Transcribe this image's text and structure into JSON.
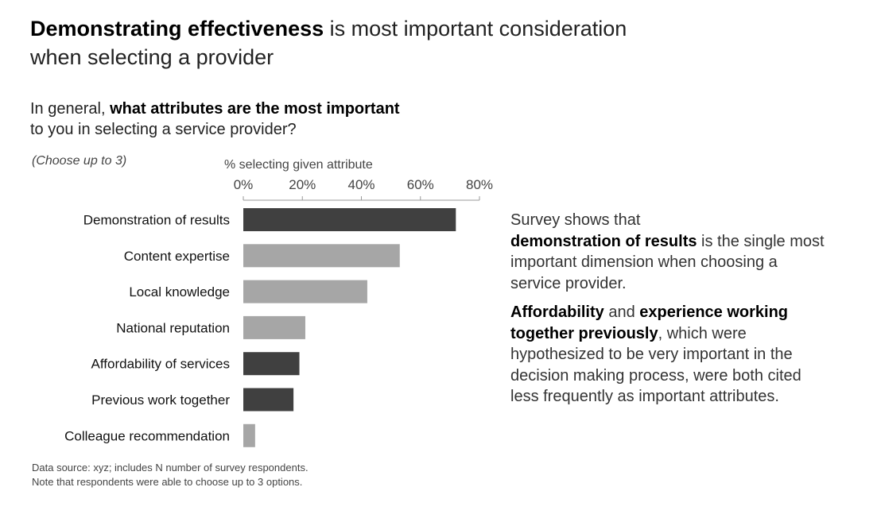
{
  "title": {
    "bold": "Demonstrating effectiveness",
    "rest_line1": " is most important consideration",
    "line2": "when selecting a provider"
  },
  "question": {
    "prefix": "In general, ",
    "bold": "what attributes are the most important",
    "line2": "to you in selecting a service provider?",
    "instruction": "(Choose up to 3)"
  },
  "chart_data": {
    "type": "bar",
    "orientation": "horizontal",
    "xlabel": "% selecting given attribute",
    "xlim": [
      0,
      80
    ],
    "ticks": [
      "0%",
      "20%",
      "40%",
      "60%",
      "80%"
    ],
    "tick_values": [
      0,
      20,
      40,
      60,
      80
    ],
    "categories": [
      "Demonstration of results",
      "Content expertise",
      "Local knowledge",
      "National reputation",
      "Affordability of services",
      "Previous work together",
      "Colleague recommendation"
    ],
    "values": [
      72,
      53,
      42,
      21,
      19,
      17,
      4
    ],
    "highlighted": [
      true,
      false,
      false,
      false,
      true,
      true,
      false
    ],
    "colors": {
      "highlight": "#404040",
      "normal": "#a6a6a6",
      "axis": "#999999"
    }
  },
  "source": {
    "line1": "Data source: xyz; includes N number of survey respondents.",
    "line2": "Note that respondents were able to choose up to 3 options."
  },
  "commentary": {
    "p1_a": "Survey shows that",
    "p1_bold": "demonstration of results",
    "p1_b": " is the single most important dimension when choosing a service provider.",
    "p2_bold1": "Affordability",
    "p2_a": " and ",
    "p2_bold2": "experience working together previously",
    "p2_b": ", which were hypothesized to be very important in the decision making process, were both cited less frequently as important attributes."
  }
}
